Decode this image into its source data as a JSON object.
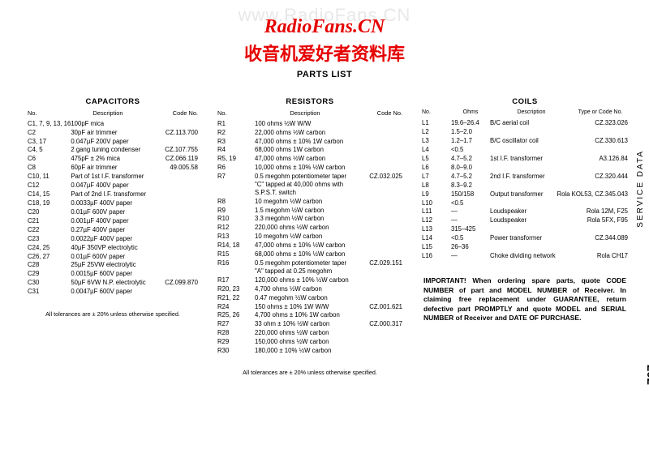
{
  "watermark_url": "www.RadioFans.CN",
  "banner_en": "RadioFans.CN",
  "banner_cn": "收音机爱好者资料库",
  "page_title": "PARTS LIST",
  "sidebar_label": "SERVICE DATA",
  "page_number": "202",
  "capacitors": {
    "title": "CAPACITORS",
    "head": {
      "no": "No.",
      "desc": "Description",
      "code": "Code No."
    },
    "rows": [
      {
        "no": "C1, 7, 9, 13, 16",
        "desc": "100pF mica",
        "code": ""
      },
      {
        "no": "C2",
        "desc": "30pF air trimmer",
        "code": "CZ.113.700"
      },
      {
        "no": "C3, 17",
        "desc": "0.047µF 200V paper",
        "code": ""
      },
      {
        "no": "C4, 5",
        "desc": "2 gang tuning condenser",
        "code": "CZ.107.755"
      },
      {
        "no": "C6",
        "desc": "475pF ± 2% mica",
        "code": "CZ.066.119"
      },
      {
        "no": "C8",
        "desc": "60pF air trimmer",
        "code": "49.005.58"
      },
      {
        "no": "C10, 11",
        "desc": "Part of 1st I.F. transformer",
        "code": ""
      },
      {
        "no": "C12",
        "desc": "0.047µF 400V paper",
        "code": ""
      },
      {
        "no": "C14, 15",
        "desc": "Part of 2nd I.F. transformer",
        "code": ""
      },
      {
        "no": "C18, 19",
        "desc": "0.0033µF 400V paper",
        "code": ""
      },
      {
        "no": "C20",
        "desc": "0.01µF 600V paper",
        "code": ""
      },
      {
        "no": "C21",
        "desc": "0.001µF 400V paper",
        "code": ""
      },
      {
        "no": "C22",
        "desc": "0.27µF 400V paper",
        "code": ""
      },
      {
        "no": "C23",
        "desc": "0.0022µF 400V paper",
        "code": ""
      },
      {
        "no": "C24, 25",
        "desc": "40µF 350VP electrolytic",
        "code": ""
      },
      {
        "no": "C26, 27",
        "desc": "0.01µF 600V paper",
        "code": ""
      },
      {
        "no": "C28",
        "desc": "25µF 25VW electrolytic",
        "code": ""
      },
      {
        "no": "C29",
        "desc": "0.0015µF 600V paper",
        "code": ""
      },
      {
        "no": "C30",
        "desc": "50µF 6VW N.P. electrolytic",
        "code": "CZ.099.870"
      },
      {
        "no": "C31",
        "desc": "0.0047µF 600V paper",
        "code": ""
      }
    ],
    "footnote": "All tolerances are ± 20% unless otherwise specified."
  },
  "resistors": {
    "title": "RESISTORS",
    "head": {
      "no": "No.",
      "desc": "Description",
      "code": "Code No."
    },
    "rows": [
      {
        "no": "R1",
        "desc": "100 ohms ½W W/W",
        "code": ""
      },
      {
        "no": "R2",
        "desc": "22,000 ohms ½W carbon",
        "code": ""
      },
      {
        "no": "R3",
        "desc": "47,000 ohms ± 10% 1W carbon",
        "code": ""
      },
      {
        "no": "R4",
        "desc": "68,000 ohms 1W carbon",
        "code": ""
      },
      {
        "no": "R5, 19",
        "desc": "47,000 ohms ½W carbon",
        "code": ""
      },
      {
        "no": "R6",
        "desc": "10,000 ohms ± 10% ½W carbon",
        "code": ""
      },
      {
        "no": "R7",
        "desc": "0.5 megohm potentiometer taper \"C\" tapped at 40,000 ohms with S.P.S.T. switch",
        "code": "CZ.032.025"
      },
      {
        "no": "R8",
        "desc": "10 megohm ½W carbon",
        "code": ""
      },
      {
        "no": "R9",
        "desc": "1.5 megohm ½W carbon",
        "code": ""
      },
      {
        "no": "R10",
        "desc": "3.3 megohm ½W carbon",
        "code": ""
      },
      {
        "no": "R12",
        "desc": "220,000 ohms ½W carbon",
        "code": ""
      },
      {
        "no": "R13",
        "desc": "10 megohm ½W carbon",
        "code": ""
      },
      {
        "no": "R14, 18",
        "desc": "47,000 ohms ± 10% ½W carbon",
        "code": ""
      },
      {
        "no": "R15",
        "desc": "68,000 ohms ± 10% ½W carbon",
        "code": ""
      },
      {
        "no": "R16",
        "desc": "0.5 megohm potentiometer taper \"A\" tapped at 0.25 megohm",
        "code": "CZ.029.151"
      },
      {
        "no": "R17",
        "desc": "120,000 ohms ± 10% ½W carbon",
        "code": ""
      },
      {
        "no": "R20, 23",
        "desc": "4,700 ohms ½W carbon",
        "code": ""
      },
      {
        "no": "R21, 22",
        "desc": "0.47 megohm ½W carbon",
        "code": ""
      },
      {
        "no": "R24",
        "desc": "150 ohms ± 10% 1W W/W",
        "code": "CZ.001.621"
      },
      {
        "no": "R25, 26",
        "desc": "4,700 ohms ± 10% 1W carbon",
        "code": ""
      },
      {
        "no": "R27",
        "desc": "33 ohm ± 10% ½W carbon",
        "code": "CZ.000.317"
      },
      {
        "no": "R28",
        "desc": "220,000 ohms ½W carbon",
        "code": ""
      },
      {
        "no": "R29",
        "desc": "150,000 ohms ½W carbon",
        "code": ""
      },
      {
        "no": "R30",
        "desc": "180,000 ± 10% ½W carbon",
        "code": ""
      }
    ],
    "footnote": "All tolerances are ± 20% unless otherwise specified."
  },
  "coils": {
    "title": "COILS",
    "head": {
      "no": "No.",
      "ohms": "Ohms",
      "desc": "Description",
      "code": "Type or Code No."
    },
    "rows": [
      {
        "no": "L1",
        "ohms": "19.6–26.4",
        "desc": "B/C aerial coil",
        "code": "CZ.323.026",
        "brace_top": true
      },
      {
        "no": "L2",
        "ohms": "1.5–2.0",
        "desc": "",
        "code": "",
        "brace_bot": true
      },
      {
        "no": "L3",
        "ohms": "1.2–1.7",
        "desc": "B/C oscillator coil",
        "code": "CZ.330.613",
        "brace_top": true
      },
      {
        "no": "L4",
        "ohms": "<0.5",
        "desc": "",
        "code": "",
        "brace_bot": true
      },
      {
        "no": "L5",
        "ohms": "4.7–5.2",
        "desc": "1st I.F. transformer",
        "code": "A3.126.84",
        "brace_top": true
      },
      {
        "no": "L6",
        "ohms": "8.0–9.0",
        "desc": "",
        "code": "",
        "brace_bot": true
      },
      {
        "no": "L7",
        "ohms": "4.7–5.2",
        "desc": "2nd I.F. transformer",
        "code": "CZ.320.444",
        "brace_top": true
      },
      {
        "no": "L8",
        "ohms": "8.3–9.2",
        "desc": "",
        "code": "",
        "brace_bot": true
      },
      {
        "no": "L9",
        "ohms": "150/158",
        "desc": "Output transformer",
        "code": "Rola KOL53, CZ.345.043",
        "brace_top": true
      },
      {
        "no": "L10",
        "ohms": "<0.5",
        "desc": "",
        "code": "",
        "brace_bot": true
      },
      {
        "no": "L11",
        "ohms": "—",
        "desc": "Loudspeaker",
        "code": "Rola 12M, F25"
      },
      {
        "no": "L12",
        "ohms": "—",
        "desc": "Loudspeaker",
        "code": "Rola 5FX, F95"
      },
      {
        "no": "L13",
        "ohms": "315–425",
        "desc": "",
        "code": ""
      },
      {
        "no": "L14",
        "ohms": "<0.5",
        "desc": "Power transformer",
        "code": "CZ.344.089"
      },
      {
        "no": "L15",
        "ohms": "26–36",
        "desc": "",
        "code": ""
      },
      {
        "no": "L16",
        "ohms": "—",
        "desc": "Choke dividing network",
        "code": "Rola CH17"
      }
    ]
  },
  "important": "IMPORTANT! When ordering spare parts, quote CODE NUMBER of part and MODEL NUMBER of Receiver. In claiming free replacement under GUARANTEE, return defective part PROMPTLY and quote MODEL and SERIAL NUMBER of Receiver and DATE OF PURCHASE."
}
